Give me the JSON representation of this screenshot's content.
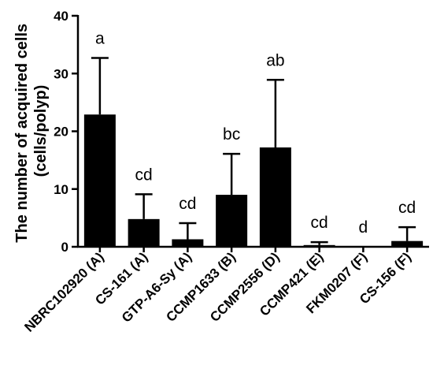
{
  "chart_data": {
    "type": "bar",
    "ylabel_lines": [
      "The number of acquired cells",
      "(cells/polyp)"
    ],
    "ylim": [
      0,
      40
    ],
    "yticks": [
      0,
      10,
      20,
      30,
      40
    ],
    "categories": [
      "NBRC102920 (A)",
      "CS-161 (A)",
      "GTP-A6-Sy (A)",
      "CCMP1633 (B)",
      "CCMP2556 (D)",
      "CCMP421 (E)",
      "FKM0207 (F)",
      "CS-156 (F)"
    ],
    "values": [
      22.9,
      4.8,
      1.3,
      9.0,
      17.2,
      0.3,
      0.0,
      1.0
    ],
    "error_upper": [
      32.7,
      9.1,
      4.1,
      16.1,
      28.9,
      0.8,
      0.0,
      3.4
    ],
    "significance": [
      "a",
      "cd",
      "cd",
      "bc",
      "ab",
      "cd",
      "d",
      "cd"
    ],
    "bar_color": "#000000",
    "grid": false
  }
}
